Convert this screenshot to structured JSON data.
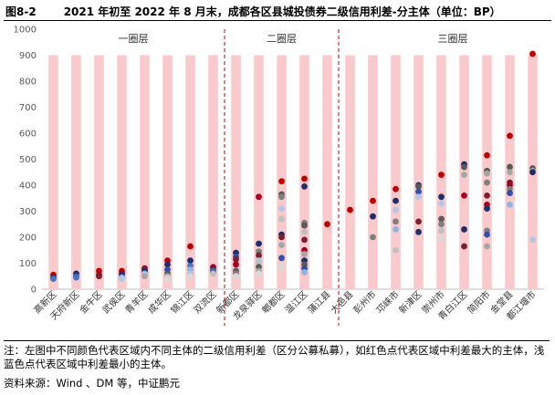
{
  "header": {
    "fig_no": "图8-2",
    "title": "2021 年初至 2022 年 8 月末，成都各区县城投债券二级信用利差-分主体（单位：BP）"
  },
  "note": "注：左图中不同颜色代表区域内不同主体的二级信用利差（区分公募私募），如红色点代表区域中利差最大的主体，浅蓝色点代表区域中利差最小的主体。",
  "source": "资料来源：Wind 、DM 等，中证鹏元",
  "colors": {
    "range_bar": "#f9c9cc",
    "divider": "#c00000",
    "point_palette": [
      "#c00000",
      "#a50021",
      "#7b1f2e",
      "#1f2d6b",
      "#2f4fa8",
      "#4472c4",
      "#8eb4e3",
      "#b4c7e7",
      "#595959",
      "#7f7f7f",
      "#a6a6a6",
      "#bfbfbf",
      "#d9d9d9"
    ]
  },
  "chart_data": {
    "type": "scatter",
    "ylim": [
      0,
      1000
    ],
    "yticks": [
      0,
      100,
      200,
      300,
      400,
      500,
      600,
      700,
      800,
      900,
      1000
    ],
    "grid": false,
    "groups": [
      {
        "name": "一圈层",
        "from": 0,
        "to": 7
      },
      {
        "name": "二圈层",
        "from": 8,
        "to": 12
      },
      {
        "name": "三圈层",
        "from": 13,
        "to": 22
      }
    ],
    "categories": [
      "高新区",
      "天府新区",
      "金牛区",
      "武侯区",
      "青羊区",
      "成华区",
      "锦江区",
      "双流区",
      "新都区",
      "龙泉驿区",
      "郫都区",
      "温江区",
      "蒲江县",
      "大邑县",
      "彭州市",
      "邛崃市",
      "新津区",
      "崇州市",
      "青白江区",
      "简阳市",
      "金堂县",
      "都江堰市"
    ],
    "range_bars": [
      [
        0,
        900
      ],
      [
        0,
        900
      ],
      [
        0,
        900
      ],
      [
        0,
        900
      ],
      [
        0,
        900
      ],
      [
        0,
        900
      ],
      [
        0,
        900
      ],
      [
        0,
        900
      ],
      [
        0,
        900
      ],
      [
        0,
        900
      ],
      [
        0,
        900
      ],
      [
        0,
        900
      ],
      [
        0,
        900
      ],
      [
        0,
        900
      ],
      [
        0,
        900
      ],
      [
        0,
        900
      ],
      [
        0,
        900
      ],
      [
        0,
        900
      ],
      [
        0,
        900
      ],
      [
        0,
        900
      ],
      [
        0,
        900
      ],
      [
        0,
        900
      ]
    ],
    "points": [
      [
        55,
        45,
        40
      ],
      [
        60,
        50,
        45
      ],
      [
        70,
        55,
        50
      ],
      [
        70,
        60,
        55,
        45,
        40
      ],
      [
        80,
        75,
        70,
        60,
        55,
        50
      ],
      [
        110,
        95,
        75,
        60,
        50,
        45,
        40
      ],
      [
        165,
        110,
        90,
        75,
        60,
        55,
        50
      ],
      [
        85,
        75,
        70,
        65,
        60
      ],
      [
        140,
        125,
        115,
        95,
        70,
        60,
        50
      ],
      [
        355,
        175,
        145,
        130,
        110,
        100,
        85,
        70,
        60
      ],
      [
        415,
        365,
        355,
        310,
        270,
        210,
        200,
        170,
        120,
        85
      ],
      [
        425,
        395,
        255,
        245,
        220,
        190,
        150,
        135,
        110,
        95,
        80,
        65
      ],
      [
        250
      ],
      [
        305
      ],
      [
        340,
        280,
        200
      ],
      [
        385,
        340,
        305,
        260,
        230,
        150
      ],
      [
        400,
        395,
        375,
        355,
        260,
        220
      ],
      [
        440,
        355,
        330,
        270,
        250,
        225,
        195
      ],
      [
        480,
        470,
        440,
        360,
        230,
        165
      ],
      [
        515,
        455,
        445,
        410,
        360,
        325,
        310,
        225,
        210,
        165
      ],
      [
        590,
        470,
        450,
        410,
        400,
        385,
        370,
        325
      ],
      [
        905,
        465,
        455,
        450,
        190
      ]
    ],
    "point_color_index": [
      [
        0,
        3,
        5
      ],
      [
        3,
        4,
        5
      ],
      [
        0,
        1,
        2
      ],
      [
        0,
        1,
        3,
        6,
        7
      ],
      [
        1,
        2,
        3,
        6,
        7,
        10
      ],
      [
        0,
        3,
        4,
        8,
        10,
        11,
        12
      ],
      [
        0,
        3,
        5,
        6,
        7,
        11,
        12
      ],
      [
        1,
        3,
        5,
        8,
        11
      ],
      [
        3,
        4,
        2,
        1,
        8,
        9,
        12
      ],
      [
        1,
        3,
        9,
        2,
        7,
        11,
        8,
        10,
        12
      ],
      [
        0,
        8,
        9,
        7,
        11,
        3,
        2,
        10,
        4,
        12
      ],
      [
        0,
        3,
        9,
        8,
        11,
        2,
        1,
        10,
        3,
        8,
        4,
        6
      ],
      [
        0
      ],
      [
        0
      ],
      [
        0,
        3,
        9
      ],
      [
        0,
        3,
        7,
        9,
        6,
        11
      ],
      [
        3,
        8,
        4,
        7,
        2,
        3
      ],
      [
        0,
        3,
        7,
        8,
        9,
        11,
        12
      ],
      [
        3,
        8,
        10,
        1,
        3,
        2
      ],
      [
        0,
        8,
        10,
        9,
        2,
        1,
        3,
        9,
        4,
        10
      ],
      [
        0,
        8,
        10,
        2,
        1,
        9,
        4,
        6
      ],
      [
        0,
        8,
        10,
        3,
        7
      ]
    ]
  }
}
